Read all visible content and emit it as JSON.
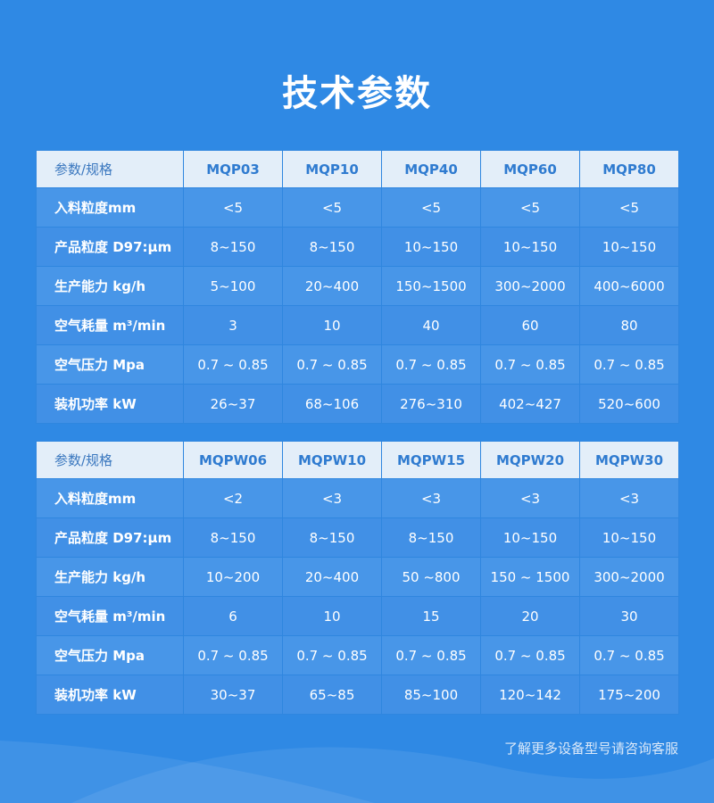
{
  "title": "技术参数",
  "tables": [
    {
      "header": [
        "参数/规格",
        "MQP03",
        "MQP10",
        "MQP40",
        "MQP60",
        "MQP80"
      ],
      "rows": [
        [
          "入料粒度mm",
          "<5",
          "<5",
          "<5",
          "<5",
          "<5"
        ],
        [
          "产品粒度 D97:μm",
          "8~150",
          "8~150",
          "10~150",
          "10~150",
          "10~150"
        ],
        [
          "生产能力 kg/h",
          "5~100",
          "20~400",
          "150~1500",
          "300~2000",
          "400~6000"
        ],
        [
          "空气耗量 m³/min",
          "3",
          "10",
          "40",
          "60",
          "80"
        ],
        [
          "空气压力 Mpa",
          "0.7 ~ 0.85",
          "0.7 ~ 0.85",
          "0.7 ~ 0.85",
          "0.7 ~ 0.85",
          "0.7 ~ 0.85"
        ],
        [
          "装机功率 kW",
          "26~37",
          "68~106",
          "276~310",
          "402~427",
          "520~600"
        ]
      ]
    },
    {
      "header": [
        "参数/规格",
        "MQPW06",
        "MQPW10",
        "MQPW15",
        "MQPW20",
        "MQPW30"
      ],
      "rows": [
        [
          "入料粒度mm",
          "<2",
          "<3",
          "<3",
          "<3",
          "<3"
        ],
        [
          "产品粒度 D97:μm",
          "8~150",
          "8~150",
          "8~150",
          "10~150",
          "10~150"
        ],
        [
          "生产能力 kg/h",
          "10~200",
          "20~400",
          "50 ~800",
          "150 ~ 1500",
          "300~2000"
        ],
        [
          "空气耗量 m³/min",
          "6",
          "10",
          "15",
          "20",
          "30"
        ],
        [
          "空气压力 Mpa",
          "0.7 ~ 0.85",
          "0.7 ~ 0.85",
          "0.7 ~ 0.85",
          "0.7 ~ 0.85",
          "0.7 ~ 0.85"
        ],
        [
          "装机功率 kW",
          "30~37",
          "65~85",
          "85~100",
          "120~142",
          "175~200"
        ]
      ]
    }
  ],
  "footer": "了解更多设备型号请咨询客服"
}
